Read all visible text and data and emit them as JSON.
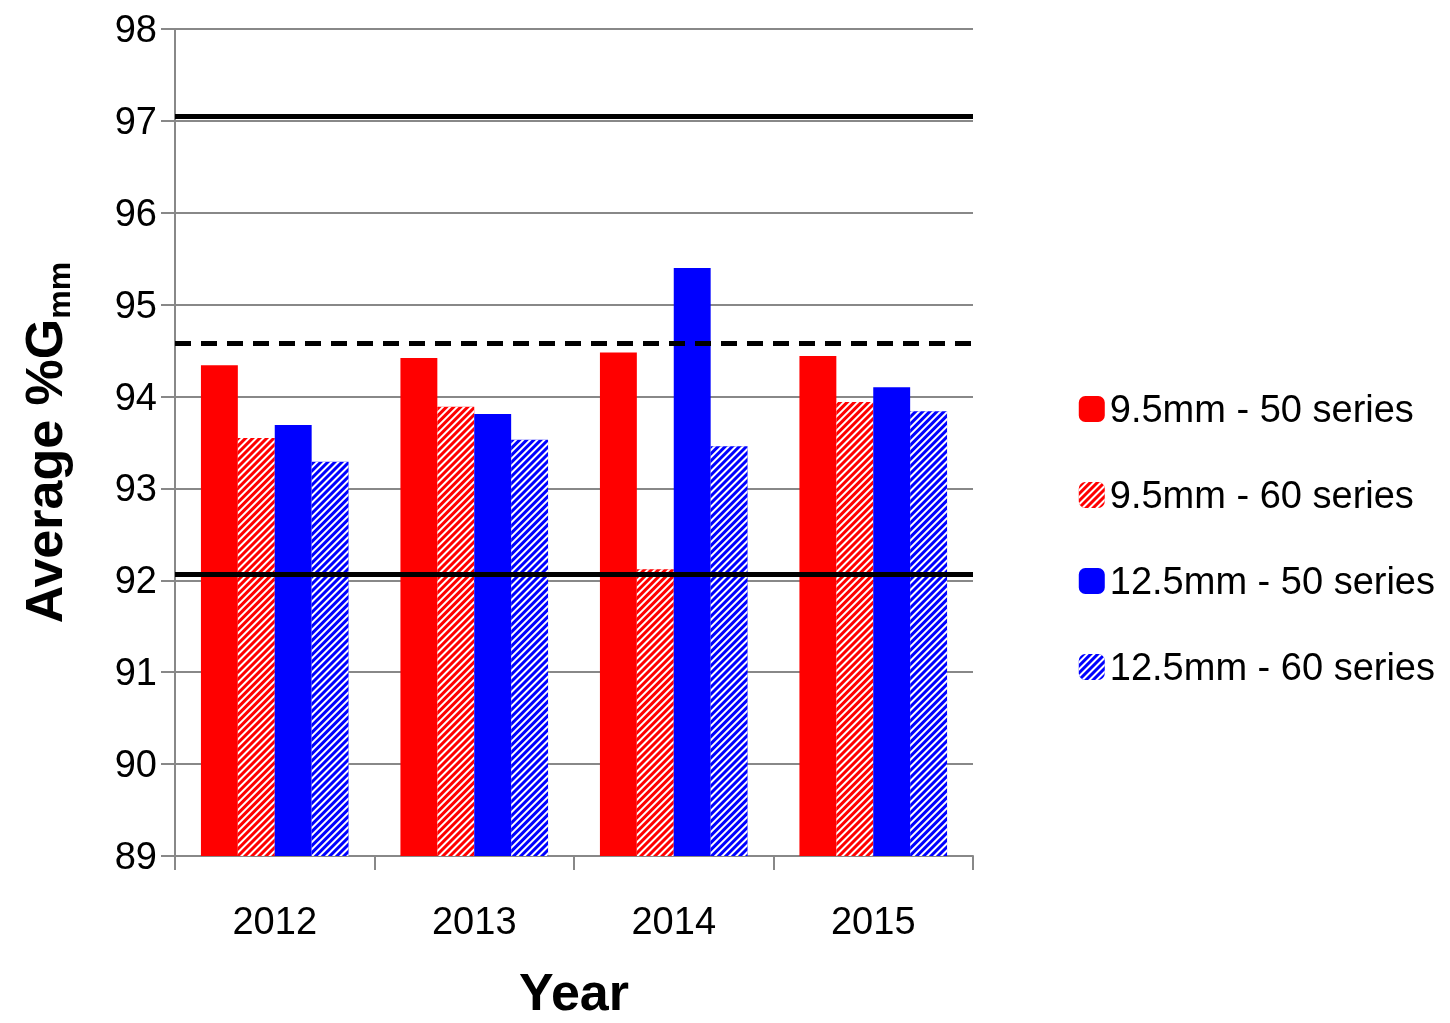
{
  "chart_data": {
    "type": "bar",
    "xlabel": "Year",
    "ylabel": "Average %G$_{mm}$",
    "categories": [
      "2012",
      "2013",
      "2014",
      "2015"
    ],
    "series": [
      {
        "name": "9.5mm - 50 series",
        "color": "#ff0000",
        "values": [
          94.34,
          94.42,
          94.48,
          94.44
        ]
      },
      {
        "name": "9.5mm - 60 series",
        "color": "#ff0000",
        "values": [
          93.55,
          93.89,
          92.12,
          93.94
        ]
      },
      {
        "name": "12.5mm - 50 series",
        "color": "#0000ff",
        "values": [
          93.69,
          93.81,
          95.4,
          94.1
        ]
      },
      {
        "name": "12.5mm - 60 series",
        "color": "#0000ff",
        "values": [
          93.29,
          93.53,
          93.46,
          93.84
        ]
      }
    ],
    "ylim": [
      89,
      98
    ],
    "yticks": [
      89,
      90,
      91,
      92,
      93,
      94,
      95,
      96,
      97,
      98
    ],
    "grid": "y",
    "legend": "right",
    "ref_lines": [
      {
        "axis": "y",
        "value": 97.05,
        "color": "#000000",
        "line_style": "solid"
      },
      {
        "axis": "y",
        "value": 94.58,
        "color": "#000000",
        "line_style": "dashed"
      },
      {
        "axis": "y",
        "value": 92.07,
        "color": "#000000",
        "line_style": "solid"
      }
    ]
  }
}
